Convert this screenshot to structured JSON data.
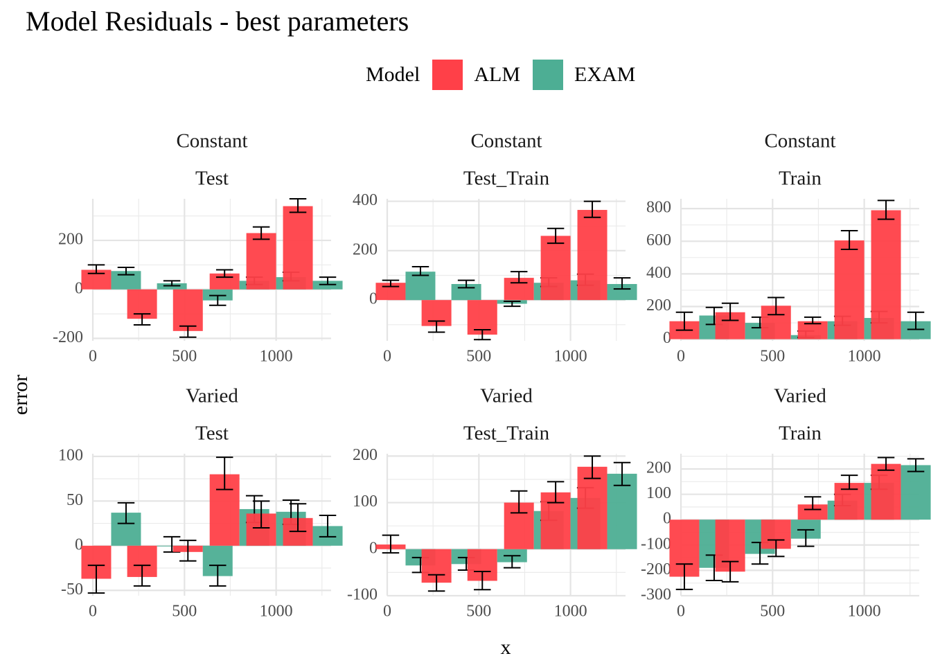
{
  "title": "Model Residuals - best parameters",
  "legend": {
    "title": "Model",
    "items": [
      {
        "label": "ALM",
        "color": "#FF4048"
      },
      {
        "label": "EXAM",
        "color": "#4DAE94"
      }
    ]
  },
  "axes": {
    "xlabel": "x",
    "ylabel": "error"
  },
  "chart_data": {
    "type": "bar",
    "title": "Model Residuals - best parameters",
    "xlabel": "x",
    "ylabel": "error",
    "legend_position": "top",
    "grid": true,
    "x_categories": [
      100,
      350,
      600,
      800,
      1000,
      1200
    ],
    "x_ticks": [
      0,
      500,
      1000
    ],
    "xlim": [
      0,
      1300
    ],
    "series_names": [
      "ALM",
      "EXAM"
    ],
    "panels": [
      {
        "strip_top": "Constant",
        "strip_bottom": "Test",
        "ylim": [
          -210,
          370
        ],
        "y_ticks": [
          -200,
          0,
          200
        ],
        "ALM": {
          "values": [
            80,
            -120,
            -170,
            65,
            230,
            340
          ],
          "err_low": [
            65,
            -145,
            -195,
            50,
            205,
            315
          ],
          "err_high": [
            100,
            -100,
            -150,
            80,
            255,
            370
          ]
        },
        "EXAM": {
          "values": [
            75,
            25,
            -45,
            35,
            50,
            35
          ],
          "err_low": [
            60,
            15,
            -65,
            20,
            35,
            20
          ],
          "err_high": [
            90,
            35,
            -25,
            50,
            70,
            50
          ]
        }
      },
      {
        "strip_top": "Constant",
        "strip_bottom": "Test_Train",
        "ylim": [
          -165,
          410
        ],
        "y_ticks": [
          0,
          200,
          400
        ],
        "ALM": {
          "values": [
            70,
            -105,
            -140,
            90,
            260,
            365
          ],
          "err_low": [
            55,
            -130,
            -160,
            70,
            230,
            335
          ],
          "err_high": [
            80,
            -85,
            -120,
            115,
            290,
            400
          ]
        },
        "EXAM": {
          "values": [
            115,
            65,
            -15,
            70,
            80,
            65
          ],
          "err_low": [
            100,
            50,
            -25,
            55,
            60,
            45
          ],
          "err_high": [
            135,
            80,
            -5,
            90,
            105,
            90
          ]
        }
      },
      {
        "strip_top": "Constant",
        "strip_bottom": "Train",
        "ylim": [
          -10,
          860
        ],
        "y_ticks": [
          0,
          200,
          400,
          600,
          800
        ],
        "ALM": {
          "values": [
            110,
            165,
            205,
            110,
            605,
            790
          ],
          "err_low": [
            55,
            115,
            150,
            95,
            550,
            735
          ],
          "err_high": [
            165,
            220,
            255,
            135,
            665,
            850
          ]
        },
        "EXAM": {
          "values": [
            145,
            100,
            25,
            110,
            130,
            110
          ],
          "err_low": [
            90,
            70,
            10,
            85,
            100,
            60
          ],
          "err_high": [
            195,
            135,
            50,
            140,
            170,
            165
          ]
        }
      },
      {
        "strip_top": "Varied",
        "strip_bottom": "Test",
        "ylim": [
          -56,
          103
        ],
        "y_ticks": [
          -50,
          0,
          50,
          100
        ],
        "ALM": {
          "values": [
            -37,
            -35,
            -7,
            80,
            36,
            31
          ],
          "err_low": [
            -53,
            -45,
            -17,
            63,
            20,
            16
          ],
          "err_high": [
            -22,
            -22,
            6,
            99,
            50,
            47
          ]
        },
        "EXAM": {
          "values": [
            37,
            0,
            -34,
            41,
            38,
            22
          ],
          "err_low": [
            25,
            -7,
            -45,
            26,
            24,
            10
          ],
          "err_high": [
            48,
            10,
            -22,
            56,
            51,
            34
          ]
        }
      },
      {
        "strip_top": "Varied",
        "strip_bottom": "Test_Train",
        "ylim": [
          -100,
          205
        ],
        "y_ticks": [
          -100,
          0,
          100,
          200
        ],
        "ALM": {
          "values": [
            10,
            -72,
            -68,
            100,
            122,
            177
          ],
          "err_low": [
            -8,
            -90,
            -87,
            78,
            100,
            152
          ],
          "err_high": [
            30,
            -55,
            -48,
            125,
            145,
            200
          ]
        },
        "EXAM": {
          "values": [
            -35,
            -32,
            -28,
            82,
            110,
            162
          ],
          "err_low": [
            -50,
            -45,
            -40,
            62,
            88,
            137
          ],
          "err_high": [
            -18,
            -18,
            -14,
            102,
            132,
            186
          ]
        }
      },
      {
        "strip_top": "Varied",
        "strip_bottom": "Train",
        "ylim": [
          -300,
          260
        ],
        "y_ticks": [
          -300,
          -200,
          -100,
          0,
          100,
          200
        ],
        "ALM": {
          "values": [
            -225,
            -205,
            -115,
            60,
            145,
            220
          ],
          "err_low": [
            -275,
            -245,
            -145,
            40,
            120,
            195
          ],
          "err_high": [
            -175,
            -165,
            -80,
            90,
            175,
            245
          ]
        },
        "EXAM": {
          "values": [
            -190,
            -135,
            -75,
            75,
            145,
            215
          ],
          "err_low": [
            -240,
            -175,
            -105,
            55,
            120,
            190
          ],
          "err_high": [
            -140,
            -90,
            -40,
            100,
            175,
            240
          ]
        }
      }
    ]
  }
}
